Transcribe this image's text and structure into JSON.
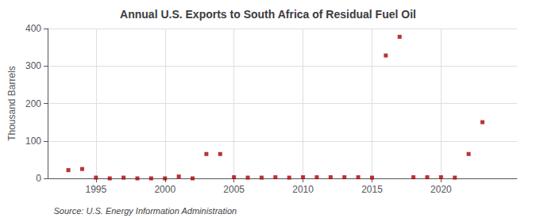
{
  "chart_data": {
    "type": "scatter",
    "title": "Annual U.S. Exports to South Africa of Residual Fuel Oil",
    "ylabel": "Thousand Barrels",
    "annotations": [
      "Source: U.S. Energy Information Administration"
    ],
    "x": [
      1993,
      1994,
      1995,
      1996,
      1997,
      1998,
      1999,
      2000,
      2001,
      2002,
      2003,
      2004,
      2005,
      2006,
      2007,
      2008,
      2009,
      2010,
      2011,
      2012,
      2013,
      2014,
      2015,
      2016,
      2017,
      2018,
      2019,
      2020,
      2021,
      2022,
      2023
    ],
    "values": [
      22,
      25,
      2,
      0,
      2,
      0,
      0,
      0,
      5,
      0,
      65,
      65,
      3,
      2,
      2,
      3,
      2,
      3,
      3,
      3,
      3,
      3,
      2,
      328,
      378,
      3,
      3,
      3,
      2,
      65,
      150
    ],
    "color": "#aa0000",
    "marker": "square",
    "xlim": [
      1991.5,
      2025.5
    ],
    "xticks": [
      1995,
      2000,
      2005,
      2010,
      2015,
      2020
    ],
    "ylim": [
      0,
      400
    ],
    "yticks": [
      0,
      100,
      200,
      300,
      400
    ],
    "grid": true
  }
}
